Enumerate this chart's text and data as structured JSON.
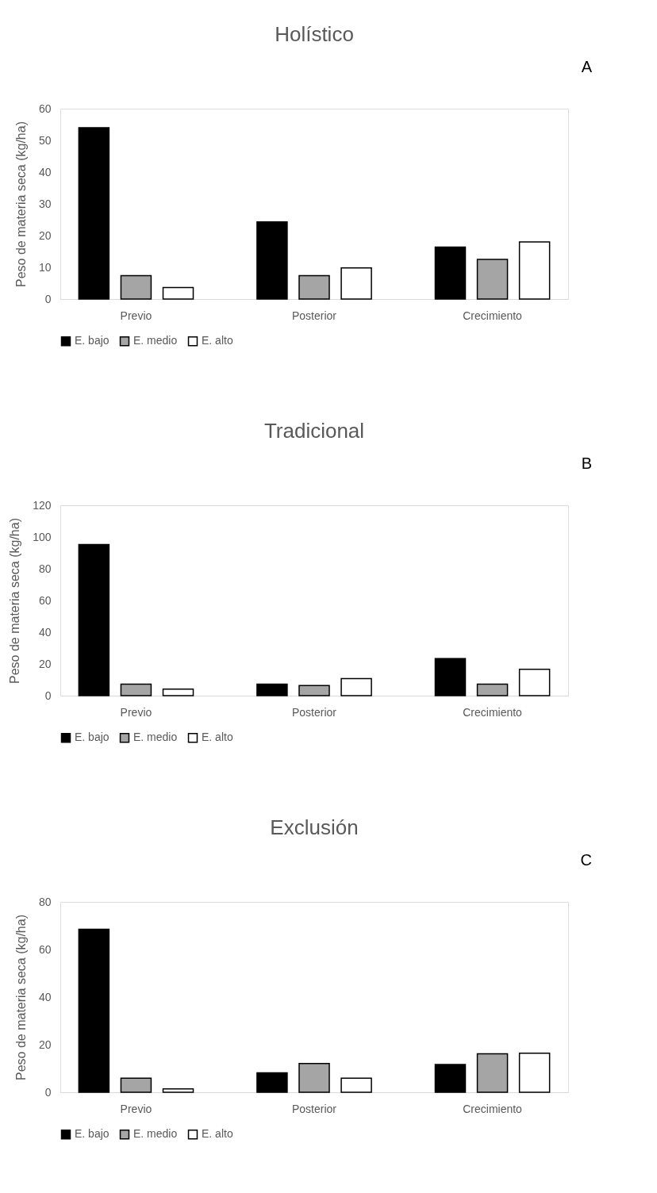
{
  "chart_data": [
    {
      "type": "bar",
      "title": "Holístico",
      "ylabel": "Peso de materia seca (kg/ha)",
      "categories": [
        "Previo",
        "Posterior",
        "Crecimiento"
      ],
      "series": [
        {
          "name": "E. bajo",
          "color": "#000000",
          "values": [
            54.0,
            24.3,
            16.4
          ]
        },
        {
          "name": "E. medio",
          "color": "#a5a5a5",
          "values": [
            7.4,
            7.4,
            12.5
          ]
        },
        {
          "name": "E. alto",
          "color": "#ffffff",
          "values": [
            3.6,
            9.8,
            18.0
          ]
        }
      ],
      "ylim": [
        0,
        60
      ],
      "yticks": [
        0,
        10,
        20,
        30,
        40,
        50,
        60
      ],
      "grid": false,
      "legend": "bottom",
      "annotations": [
        "A"
      ]
    },
    {
      "type": "bar",
      "title": "Tradicional",
      "ylabel": "Peso de materia seca (kg/ha)",
      "categories": [
        "Previo",
        "Posterior",
        "Crecimiento"
      ],
      "series": [
        {
          "name": "E. bajo",
          "color": "#000000",
          "values": [
            95.2,
            7.3,
            23.4
          ]
        },
        {
          "name": "E. medio",
          "color": "#a5a5a5",
          "values": [
            7.3,
            6.4,
            7.3
          ]
        },
        {
          "name": "E. alto",
          "color": "#ffffff",
          "values": [
            4.1,
            10.8,
            16.6
          ]
        }
      ],
      "ylim": [
        0,
        120
      ],
      "yticks": [
        0,
        20,
        40,
        60,
        80,
        100,
        120
      ],
      "grid": false,
      "legend": "bottom",
      "annotations": [
        "B"
      ]
    },
    {
      "type": "bar",
      "title": "Exclusión",
      "ylabel": "Peso de materia seca (kg/ha)",
      "categories": [
        "Previo",
        "Posterior",
        "Crecimiento"
      ],
      "series": [
        {
          "name": "E. bajo",
          "color": "#000000",
          "values": [
            68.5,
            8.2,
            11.7
          ]
        },
        {
          "name": "E. medio",
          "color": "#a5a5a5",
          "values": [
            5.9,
            12.1,
            16.2
          ]
        },
        {
          "name": "E. alto",
          "color": "#ffffff",
          "values": [
            1.4,
            5.9,
            16.4
          ]
        }
      ],
      "ylim": [
        0,
        80
      ],
      "yticks": [
        0,
        20,
        40,
        60,
        80
      ],
      "grid": false,
      "legend": "bottom",
      "annotations": [
        "C"
      ]
    }
  ]
}
